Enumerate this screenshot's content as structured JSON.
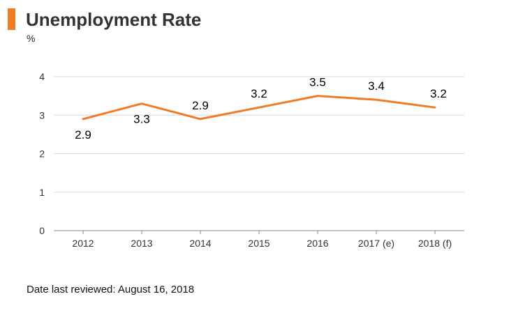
{
  "header": {
    "title": "Unemployment Rate",
    "unit": "%",
    "accent_color": "#f07c26"
  },
  "footer": {
    "note": "Date last reviewed: August 16, 2018"
  },
  "chart_data": {
    "type": "line",
    "title": "Unemployment Rate",
    "xlabel": "",
    "ylabel": "%",
    "categories": [
      "2012",
      "2013",
      "2014",
      "2015",
      "2016",
      "2017 (e)",
      "2018 (f)"
    ],
    "series": [
      {
        "values": [
          2.9,
          3.3,
          2.9,
          3.2,
          3.5,
          3.4,
          3.2
        ],
        "labels": [
          "2.9",
          "3.3",
          "2.9",
          "3.2",
          "3.5",
          "3.4",
          "3.2"
        ],
        "color": "#f07c26"
      }
    ],
    "yticks": [
      "0",
      "1",
      "2",
      "3",
      "4"
    ],
    "ylim": [
      0,
      4
    ],
    "grid": true,
    "legend": "none"
  }
}
